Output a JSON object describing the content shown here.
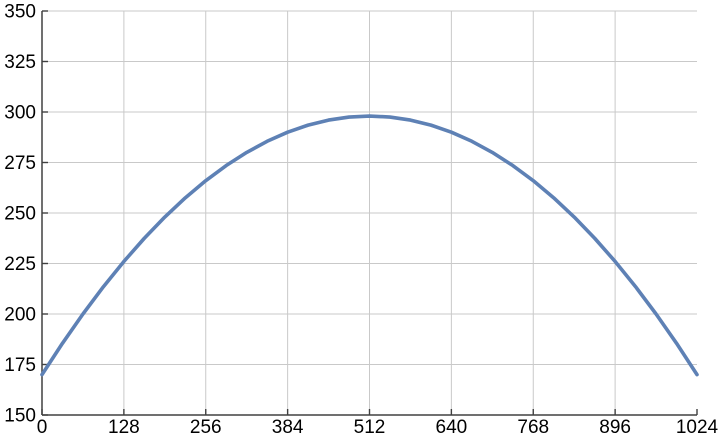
{
  "chart_data": {
    "type": "line",
    "title": "",
    "xlabel": "",
    "ylabel": "",
    "xlim": [
      0,
      1024
    ],
    "ylim": [
      150,
      350
    ],
    "x_ticks": [
      0,
      128,
      256,
      384,
      512,
      640,
      768,
      896,
      1024
    ],
    "y_ticks": [
      150,
      175,
      200,
      225,
      250,
      275,
      300,
      325,
      350
    ],
    "grid": true,
    "legend": false,
    "description": "Parabolic arc from (0,170) peaking at (512,298) down to (1024,170)",
    "series": [
      {
        "name": "curve",
        "color": "#5e81b5",
        "x": [
          0,
          32,
          64,
          96,
          128,
          160,
          192,
          224,
          256,
          288,
          320,
          352,
          384,
          416,
          448,
          480,
          512,
          544,
          576,
          608,
          640,
          672,
          704,
          736,
          768,
          800,
          832,
          864,
          896,
          928,
          960,
          992,
          1024
        ],
        "y": [
          170,
          185.5,
          200,
          213.5,
          226,
          237.5,
          248,
          257.5,
          266,
          273.5,
          280,
          285.5,
          290,
          293.5,
          296,
          297.5,
          298,
          297.5,
          296,
          293.5,
          290,
          285.5,
          280,
          273.5,
          266,
          257.5,
          248,
          237.5,
          226,
          213.5,
          200,
          185.5,
          170
        ]
      }
    ]
  },
  "colors": {
    "curve": "#5e81b5",
    "grid": "#c9c9c9",
    "axis": "#404040",
    "tick_label": "#000000",
    "background": "#ffffff"
  }
}
